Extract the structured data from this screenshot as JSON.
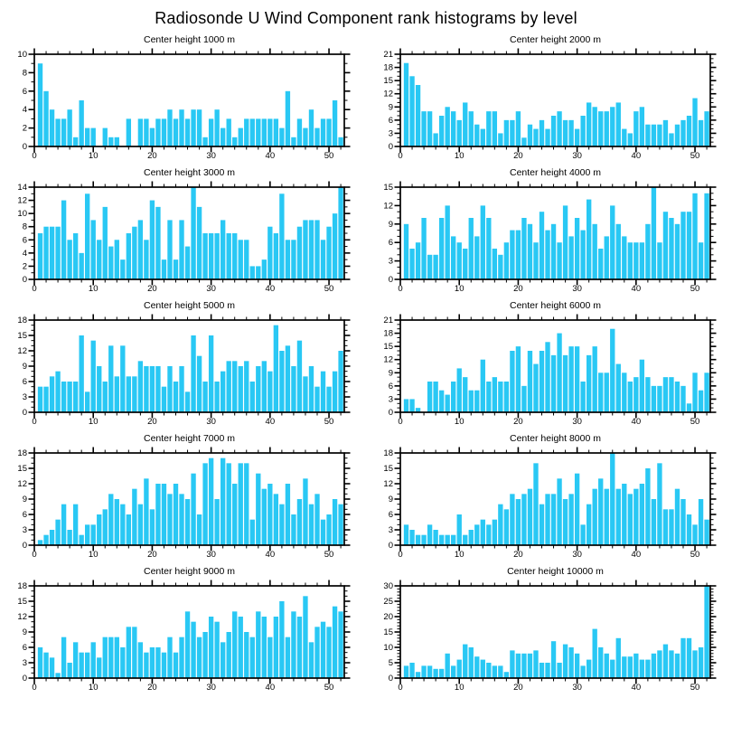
{
  "page": {
    "title": "Radiosonde U Wind Component rank histograms by level"
  },
  "style": {
    "bar_color": "#29C8F4",
    "axis_color": "#000000",
    "background": "#FFFFFF"
  },
  "chart_data": [
    {
      "type": "bar",
      "title": "Center height 1000 m",
      "xlabel": "",
      "ylabel": "",
      "xlim": [
        0,
        52.6
      ],
      "ylim": [
        0,
        10
      ],
      "ytick_step": 2,
      "y_minor_step": 1,
      "x_ticks": [
        0,
        10,
        20,
        30,
        40,
        50
      ],
      "x_minor_step": 2,
      "grid": false,
      "legend": "none",
      "values": [
        9,
        6,
        4,
        3,
        3,
        4,
        1,
        5,
        2,
        2,
        0,
        2,
        1,
        1,
        0,
        3,
        0,
        3,
        3,
        2,
        3,
        3,
        4,
        3,
        4,
        3,
        4,
        4,
        1,
        3,
        4,
        2,
        3,
        1,
        2,
        3,
        3,
        3,
        3,
        3,
        3,
        2,
        6,
        1,
        3,
        2,
        4,
        2,
        3,
        3,
        5,
        1
      ]
    },
    {
      "type": "bar",
      "title": "Center height 2000 m",
      "xlabel": "",
      "ylabel": "",
      "xlim": [
        0,
        52.6
      ],
      "ylim": [
        0,
        21
      ],
      "ytick_step": 3,
      "y_minor_step": 1,
      "x_ticks": [
        0,
        10,
        20,
        30,
        40,
        50
      ],
      "x_minor_step": 2,
      "grid": false,
      "legend": "none",
      "values": [
        19,
        16,
        14,
        8,
        8,
        3,
        7,
        9,
        8,
        6,
        10,
        8,
        5,
        4,
        8,
        8,
        3,
        6,
        6,
        8,
        2,
        5,
        4,
        6,
        4,
        7,
        8,
        6,
        6,
        4,
        7,
        10,
        9,
        8,
        8,
        9,
        10,
        4,
        3,
        8,
        9,
        5,
        5,
        5,
        6,
        3,
        5,
        6,
        7,
        11,
        6,
        8
      ]
    },
    {
      "type": "bar",
      "title": "Center height 3000 m",
      "xlabel": "",
      "ylabel": "",
      "xlim": [
        0,
        52.6
      ],
      "ylim": [
        0,
        14
      ],
      "ytick_step": 2,
      "y_minor_step": 1,
      "x_ticks": [
        0,
        10,
        20,
        30,
        40,
        50
      ],
      "x_minor_step": 2,
      "grid": false,
      "legend": "none",
      "values": [
        7,
        8,
        8,
        8,
        12,
        6,
        7,
        4,
        13,
        9,
        6,
        11,
        5,
        6,
        3,
        7,
        8,
        9,
        6,
        12,
        11,
        3,
        9,
        3,
        9,
        5,
        14,
        11,
        7,
        7,
        7,
        9,
        7,
        7,
        6,
        6,
        2,
        2,
        3,
        8,
        7,
        13,
        6,
        6,
        8,
        9,
        9,
        9,
        6,
        8,
        10,
        14
      ]
    },
    {
      "type": "bar",
      "title": "Center height 4000 m",
      "xlabel": "",
      "ylabel": "",
      "xlim": [
        0,
        52.6
      ],
      "ylim": [
        0,
        15
      ],
      "ytick_step": 3,
      "y_minor_step": 1,
      "x_ticks": [
        0,
        10,
        20,
        30,
        40,
        50
      ],
      "x_minor_step": 2,
      "grid": false,
      "legend": "none",
      "values": [
        9,
        5,
        6,
        10,
        4,
        4,
        10,
        12,
        7,
        6,
        5,
        10,
        7,
        12,
        10,
        5,
        4,
        6,
        8,
        8,
        10,
        9,
        6,
        11,
        8,
        9,
        6,
        12,
        7,
        10,
        8,
        13,
        9,
        5,
        7,
        12,
        9,
        7,
        6,
        6,
        6,
        9,
        15,
        6,
        11,
        10,
        9,
        11,
        11,
        14,
        6,
        14
      ]
    },
    {
      "type": "bar",
      "title": "Center height 5000 m",
      "xlabel": "",
      "ylabel": "",
      "xlim": [
        0,
        52.6
      ],
      "ylim": [
        0,
        18
      ],
      "ytick_step": 3,
      "y_minor_step": 1,
      "x_ticks": [
        0,
        10,
        20,
        30,
        40,
        50
      ],
      "x_minor_step": 2,
      "grid": false,
      "legend": "none",
      "values": [
        5,
        5,
        7,
        8,
        6,
        6,
        6,
        15,
        4,
        14,
        9,
        6,
        13,
        7,
        13,
        7,
        7,
        10,
        9,
        9,
        9,
        5,
        9,
        6,
        9,
        4,
        15,
        11,
        6,
        15,
        6,
        8,
        10,
        10,
        9,
        10,
        6,
        9,
        10,
        8,
        17,
        12,
        13,
        9,
        14,
        7,
        9,
        5,
        8,
        5,
        8,
        12
      ]
    },
    {
      "type": "bar",
      "title": "Center height 6000 m",
      "xlabel": "",
      "ylabel": "",
      "xlim": [
        0,
        52.6
      ],
      "ylim": [
        0,
        21
      ],
      "ytick_step": 3,
      "y_minor_step": 1,
      "x_ticks": [
        0,
        10,
        20,
        30,
        40,
        50
      ],
      "x_minor_step": 2,
      "grid": false,
      "legend": "none",
      "values": [
        3,
        3,
        1,
        0,
        7,
        7,
        5,
        4,
        7,
        10,
        8,
        5,
        5,
        12,
        7,
        8,
        7,
        7,
        14,
        15,
        6,
        14,
        11,
        14,
        16,
        13,
        18,
        13,
        15,
        15,
        7,
        13,
        15,
        9,
        9,
        19,
        11,
        9,
        7,
        8,
        12,
        8,
        6,
        6,
        8,
        8,
        7,
        6,
        2,
        9,
        5,
        9
      ]
    },
    {
      "type": "bar",
      "title": "Center height 7000 m",
      "xlabel": "",
      "ylabel": "",
      "xlim": [
        0,
        52.6
      ],
      "ylim": [
        0,
        18
      ],
      "ytick_step": 3,
      "y_minor_step": 1,
      "x_ticks": [
        0,
        10,
        20,
        30,
        40,
        50
      ],
      "x_minor_step": 2,
      "grid": false,
      "legend": "none",
      "values": [
        1,
        2,
        3,
        5,
        8,
        3,
        8,
        2,
        4,
        4,
        6,
        7,
        10,
        9,
        8,
        6,
        11,
        8,
        13,
        7,
        12,
        12,
        10,
        12,
        10,
        9,
        14,
        6,
        16,
        17,
        9,
        17,
        16,
        12,
        16,
        16,
        5,
        14,
        11,
        12,
        10,
        8,
        12,
        6,
        9,
        13,
        8,
        10,
        5,
        6,
        9,
        8
      ]
    },
    {
      "type": "bar",
      "title": "Center height 8000 m",
      "xlabel": "",
      "ylabel": "",
      "xlim": [
        0,
        52.6
      ],
      "ylim": [
        0,
        18
      ],
      "ytick_step": 3,
      "y_minor_step": 1,
      "x_ticks": [
        0,
        10,
        20,
        30,
        40,
        50
      ],
      "x_minor_step": 2,
      "grid": false,
      "legend": "none",
      "values": [
        4,
        3,
        2,
        2,
        4,
        3,
        2,
        2,
        2,
        6,
        2,
        3,
        4,
        5,
        4,
        5,
        8,
        7,
        10,
        9,
        10,
        11,
        16,
        8,
        10,
        10,
        13,
        9,
        10,
        14,
        4,
        8,
        11,
        13,
        11,
        18,
        11,
        12,
        10,
        11,
        12,
        15,
        9,
        16,
        7,
        7,
        11,
        9,
        6,
        4,
        9,
        5
      ]
    },
    {
      "type": "bar",
      "title": "Center height 9000 m",
      "xlabel": "",
      "ylabel": "",
      "xlim": [
        0,
        52.6
      ],
      "ylim": [
        0,
        18
      ],
      "ytick_step": 3,
      "y_minor_step": 1,
      "x_ticks": [
        0,
        10,
        20,
        30,
        40,
        50
      ],
      "x_minor_step": 2,
      "grid": false,
      "legend": "none",
      "values": [
        6,
        5,
        4,
        1,
        8,
        3,
        7,
        5,
        5,
        7,
        4,
        8,
        8,
        8,
        6,
        10,
        10,
        7,
        5,
        6,
        6,
        5,
        8,
        5,
        8,
        13,
        11,
        8,
        9,
        12,
        11,
        7,
        9,
        13,
        12,
        9,
        8,
        13,
        12,
        8,
        12,
        15,
        8,
        13,
        12,
        16,
        7,
        10,
        11,
        10,
        14,
        13
      ]
    },
    {
      "type": "bar",
      "title": "Center height 10000 m",
      "xlabel": "",
      "ylabel": "",
      "xlim": [
        0,
        52.6
      ],
      "ylim": [
        0,
        30
      ],
      "ytick_step": 5,
      "y_minor_step": 1,
      "x_ticks": [
        0,
        10,
        20,
        30,
        40,
        50
      ],
      "x_minor_step": 2,
      "grid": false,
      "legend": "none",
      "values": [
        4,
        5,
        2,
        4,
        4,
        3,
        3,
        8,
        4,
        6,
        11,
        10,
        7,
        6,
        5,
        4,
        4,
        2,
        9,
        8,
        8,
        8,
        9,
        5,
        5,
        12,
        5,
        11,
        10,
        8,
        4,
        6,
        16,
        10,
        8,
        6,
        13,
        7,
        7,
        8,
        6,
        6,
        8,
        9,
        11,
        9,
        8,
        13,
        13,
        9,
        10,
        30
      ]
    }
  ]
}
